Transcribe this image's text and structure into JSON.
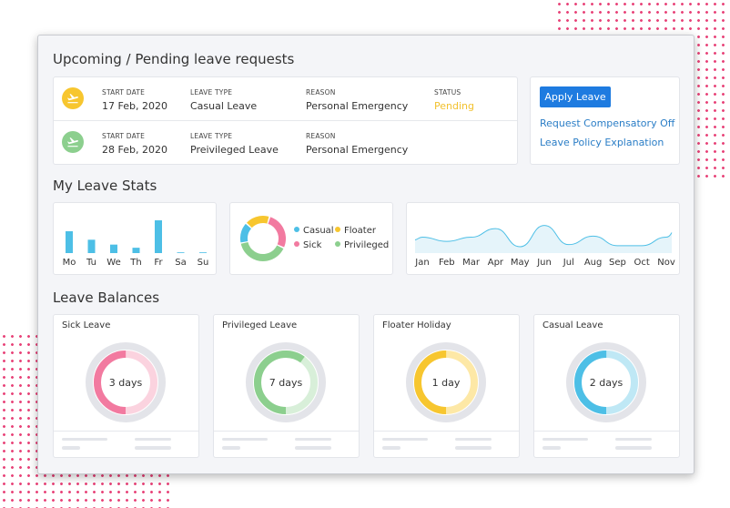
{
  "requests": {
    "title": "Upcoming / Pending leave requests",
    "labels": {
      "start": "START DATE",
      "type": "LEAVE TYPE",
      "reason": "REASON",
      "status": "STATUS"
    },
    "rows": [
      {
        "icon": "plane-departure-icon",
        "icon_color": "#f7c62f",
        "start": "17 Feb, 2020",
        "type": "Casual Leave",
        "reason": "Personal Emergency",
        "status": "Pending",
        "status_color": "#f2c12e"
      },
      {
        "icon": "plane-departure-icon",
        "icon_color": "#8ccf8e",
        "start": "28 Feb, 2020",
        "type": "Preivileged Leave",
        "reason": "Personal Emergency",
        "status": ""
      }
    ]
  },
  "actions": {
    "apply": "Apply Leave",
    "compensatory": "Request Compensatory Off",
    "policy": "Leave Policy Explanation"
  },
  "stats": {
    "title": "My Leave Stats",
    "weekly": {
      "type": "bar",
      "categories": [
        "Mo",
        "Tu",
        "We",
        "Th",
        "Fr",
        "Sa",
        "Su"
      ],
      "values": [
        9,
        5.5,
        3.5,
        2.2,
        13.5,
        0.3,
        0.3
      ],
      "ylim": [
        0,
        15
      ],
      "color": "#4dbfe6"
    },
    "distribution": {
      "type": "pie",
      "series": [
        {
          "name": "Casual",
          "value": 15,
          "color": "#4dbfe6"
        },
        {
          "name": "Floater",
          "value": 18,
          "color": "#f7c62f"
        },
        {
          "name": "Sick",
          "value": 27,
          "color": "#f27aa0"
        },
        {
          "name": "Privileged",
          "value": 40,
          "color": "#8ccf8e"
        }
      ]
    },
    "monthly": {
      "type": "area",
      "categories": [
        "Jan",
        "Feb",
        "Mar",
        "Apr",
        "May",
        "Jun",
        "Jul",
        "Aug",
        "Sep",
        "Oct",
        "Nov"
      ],
      "values": [
        3,
        2.2,
        3,
        4.6,
        1.2,
        5.2,
        1.6,
        3.2,
        1.4,
        1.4,
        3
      ],
      "ylim": [
        0,
        6
      ],
      "color": "#4dbfe6",
      "fill": "#e5f4fa"
    }
  },
  "balances": {
    "title": "Leave Balances",
    "cards": [
      {
        "title": "Sick Leave",
        "label": "3 days",
        "fraction": 0.5,
        "color": "#f27aa0",
        "light": "#fbd3df",
        "icon": ""
      },
      {
        "title": "Privileged Leave",
        "label": "7 days",
        "fraction": 0.6,
        "color": "#8ccf8e",
        "light": "#d8efd9",
        "icon": ""
      },
      {
        "title": "Floater Holiday",
        "label": "1 day",
        "fraction": 0.5,
        "color": "#f7c62f",
        "light": "#fde8a6",
        "icon": ""
      },
      {
        "title": "Casual Leave",
        "label": "2 days",
        "fraction": 0.5,
        "color": "#4dbfe6",
        "light": "#bfe8f5",
        "icon": ""
      }
    ]
  }
}
